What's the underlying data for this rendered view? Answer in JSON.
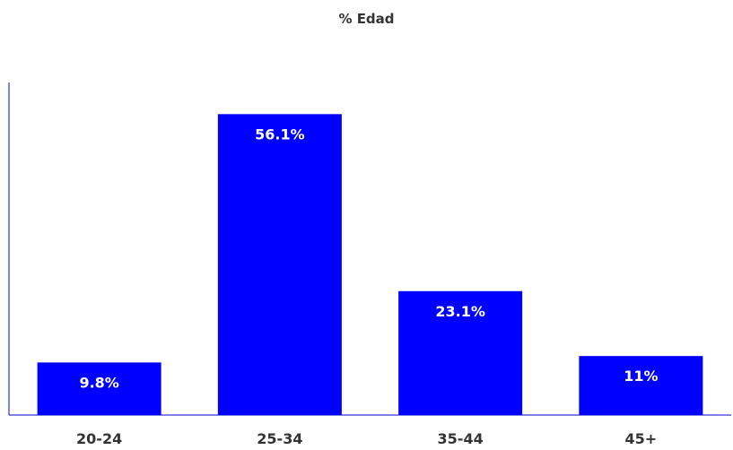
{
  "chart_data": {
    "type": "bar",
    "title": "% Edad",
    "xlabel": "",
    "ylabel": "",
    "categories": [
      "20-24",
      "25-34",
      "35-44",
      "45+"
    ],
    "values": [
      9.8,
      56.1,
      23.1,
      11
    ],
    "data_labels": [
      "9.8%",
      "56.1%",
      "23.1%",
      "11%"
    ],
    "ylim": [
      0,
      62
    ],
    "grid": false,
    "legend": "none",
    "colors": {
      "bar": "#0000ff",
      "axis": "#0000cc",
      "label_inside": "#ffffff",
      "tick_label": "#333333"
    }
  }
}
